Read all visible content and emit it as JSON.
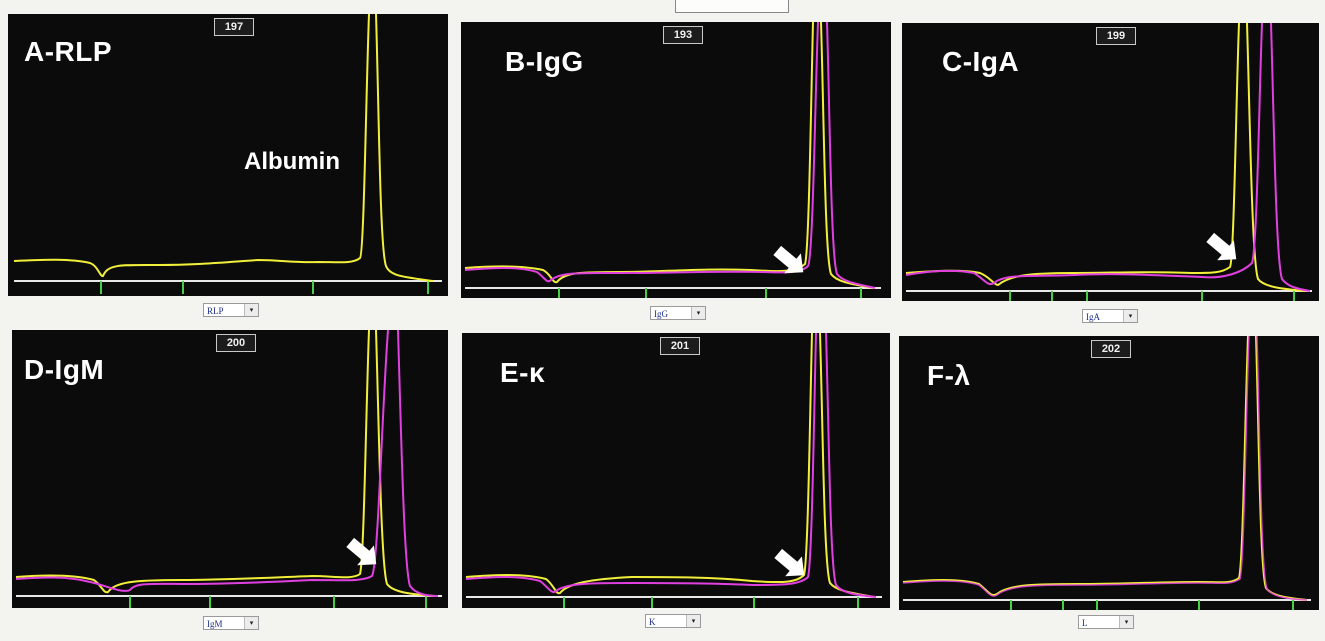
{
  "annotations": {
    "albumin": "Albumin"
  },
  "panels": [
    {
      "id": "A",
      "label": "A-RLP",
      "number": "197",
      "selector": "RLP",
      "traces": [
        "yellow"
      ],
      "arrow": false,
      "albumin_label": true
    },
    {
      "id": "B",
      "label": "B-IgG",
      "number": "193",
      "selector": "IgG",
      "traces": [
        "yellow",
        "magenta"
      ],
      "arrow": true,
      "albumin_label": false
    },
    {
      "id": "C",
      "label": "C-IgA",
      "number": "199",
      "selector": "IgA",
      "traces": [
        "yellow",
        "magenta"
      ],
      "arrow": true,
      "albumin_label": false
    },
    {
      "id": "D",
      "label": "D-IgM",
      "number": "200",
      "selector": "IgM",
      "traces": [
        "yellow",
        "magenta"
      ],
      "arrow": true,
      "albumin_label": false
    },
    {
      "id": "E",
      "label": "E-κ",
      "number": "201",
      "selector": "K",
      "traces": [
        "yellow",
        "magenta"
      ],
      "arrow": true,
      "albumin_label": false
    },
    {
      "id": "F",
      "label": "F-λ",
      "number": "202",
      "selector": "L",
      "traces": [
        "yellow",
        "magenta"
      ],
      "arrow": false,
      "albumin_label": false
    }
  ],
  "colors": {
    "panel_background": "#0b0b0c",
    "trace_reference": "#f2ef3a",
    "trace_immunofixation": "#e040e0",
    "baseline": "#e8e8e8",
    "fraction_marks": "#47d047",
    "arrow": "#ffffff"
  }
}
